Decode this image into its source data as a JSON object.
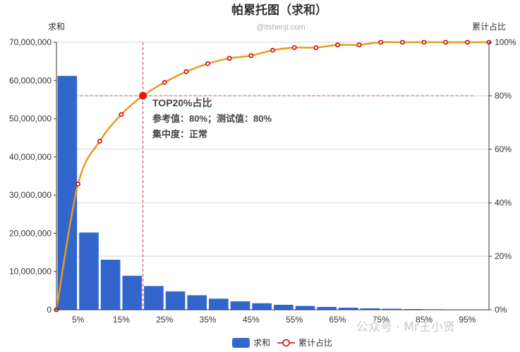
{
  "chart_data": {
    "type": "bar",
    "title": "帕累托图（求和）",
    "watermark_top": "@itshenji.com",
    "watermark_bottom": "公众号 · Mr王小贤",
    "y_left_label": "求和",
    "y_right_label": "累计占比",
    "y_left_ticks": [
      "0",
      "10,000,000",
      "20,000,000",
      "30,000,000",
      "40,000,000",
      "50,000,000",
      "60,000,000",
      "70,000,000"
    ],
    "y_right_ticks": [
      "0%",
      "20%",
      "40%",
      "60%",
      "80%",
      "100%"
    ],
    "ylim_left": [
      0,
      70000000
    ],
    "ylim_right": [
      0,
      100
    ],
    "x_ticks": [
      "5%",
      "15%",
      "25%",
      "35%",
      "45%",
      "55%",
      "65%",
      "75%",
      "85%",
      "95%"
    ],
    "xlim": [
      0,
      100
    ],
    "series": [
      {
        "name": "求和",
        "type": "bar",
        "color": "#3366cc",
        "x": [
          2.5,
          7.5,
          12.5,
          17.5,
          22.5,
          27.5,
          32.5,
          37.5,
          42.5,
          47.5,
          52.5,
          57.5,
          62.5,
          67.5,
          72.5,
          77.5,
          82.5,
          87.5,
          92.5,
          97.5
        ],
        "values": [
          61200000,
          20200000,
          13100000,
          8900000,
          6200000,
          4800000,
          3800000,
          2900000,
          2200000,
          1700000,
          1300000,
          1000000,
          750000,
          550000,
          380000,
          260000,
          180000,
          120000,
          70000,
          30000
        ]
      },
      {
        "name": "累计占比",
        "type": "line",
        "color": "#e89a20",
        "marker_color": "#cc0000",
        "x": [
          0,
          5,
          10,
          15,
          20,
          25,
          30,
          35,
          40,
          45,
          50,
          55,
          60,
          65,
          70,
          75,
          80,
          85,
          90,
          95,
          100
        ],
        "values": [
          0,
          47,
          63,
          73,
          80,
          85,
          89,
          92,
          94,
          95,
          97,
          98,
          98,
          99,
          99,
          100,
          100,
          100,
          100,
          100,
          100
        ]
      }
    ],
    "highlight": {
      "x": 20,
      "y": 80
    },
    "annotations": [
      "TOP20%占比",
      "参考值：80%；测试值：80%",
      "集中度：正常"
    ],
    "grid": true,
    "legend_position": "bottom"
  }
}
